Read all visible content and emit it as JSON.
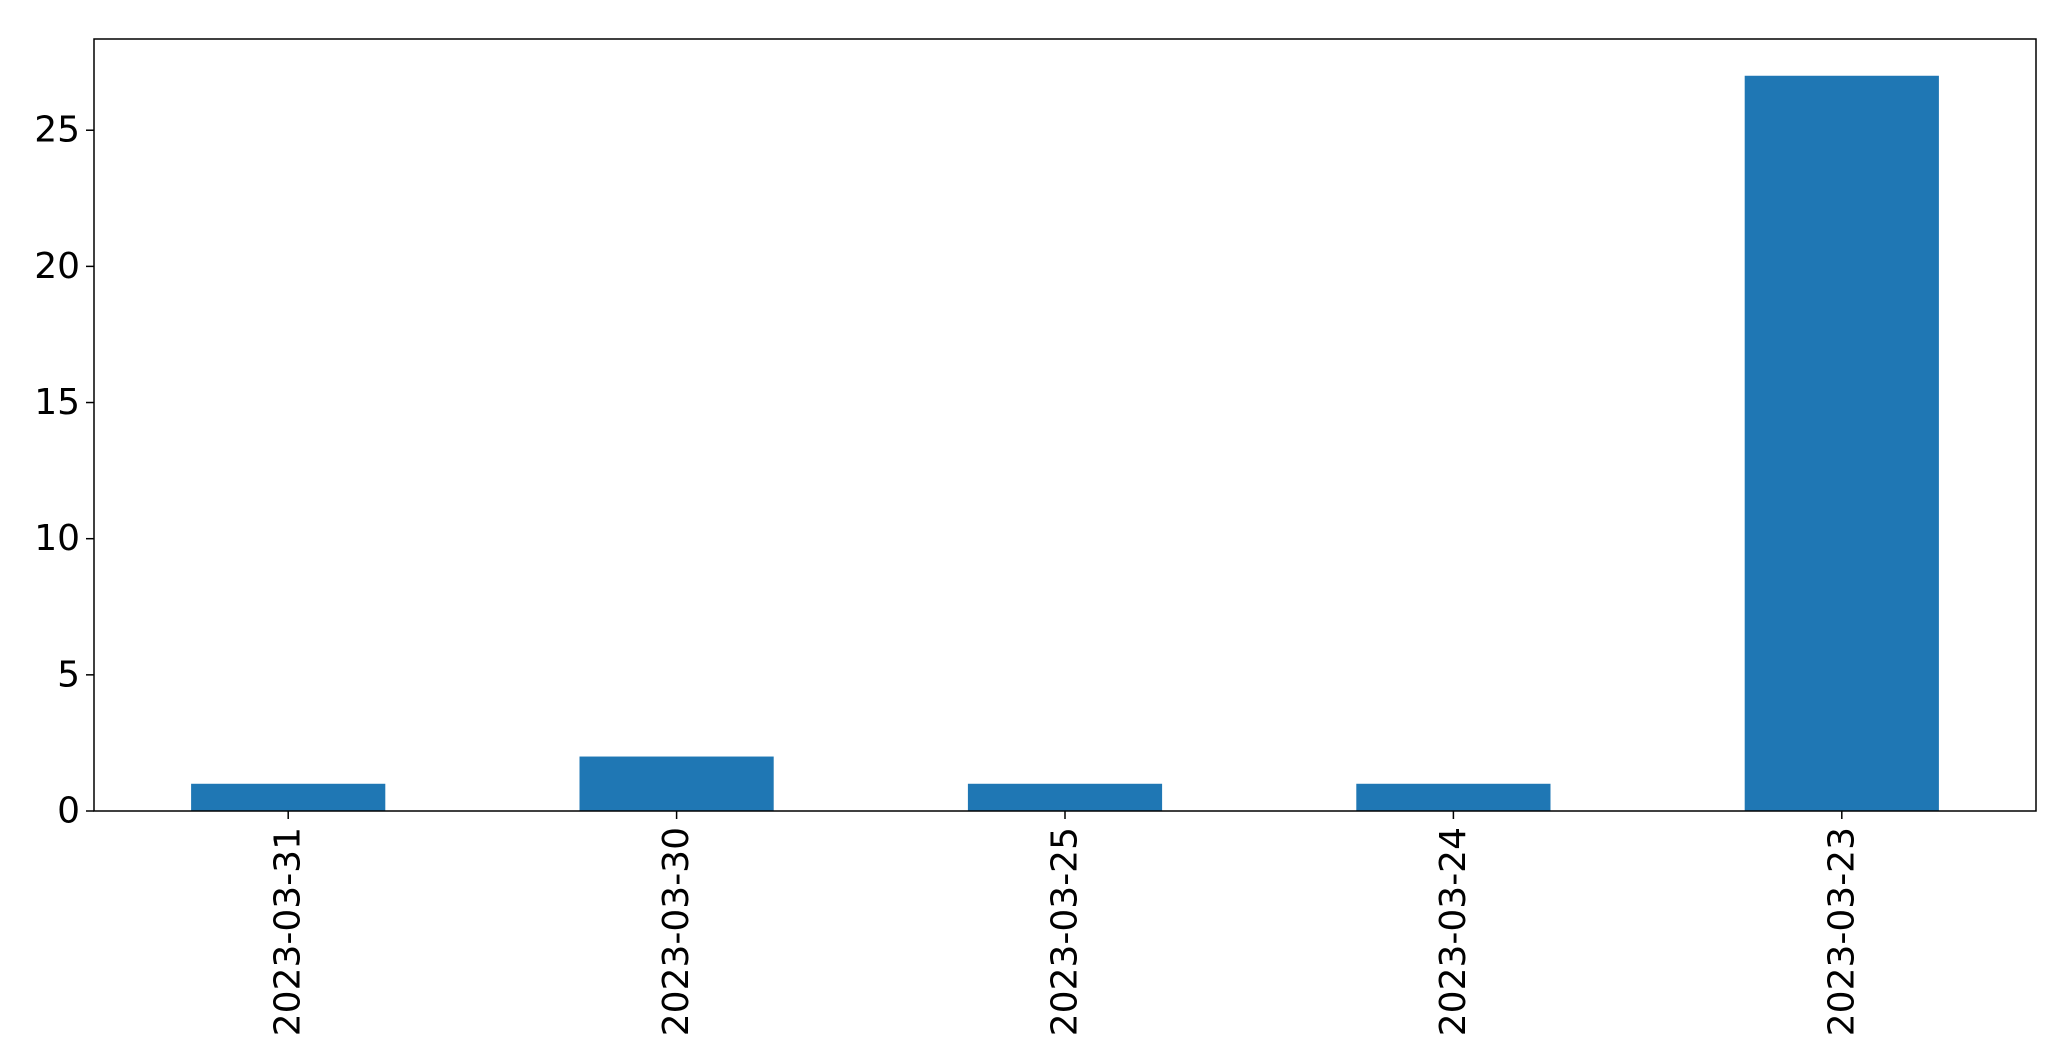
{
  "chart_data": {
    "type": "bar",
    "categories": [
      "2023-03-31",
      "2023-03-30",
      "2023-03-25",
      "2023-03-24",
      "2023-03-23"
    ],
    "values": [
      1,
      2,
      1,
      1,
      27
    ],
    "ylim": [
      0,
      28.35
    ],
    "yticks": [
      0,
      5,
      10,
      15,
      20,
      25
    ],
    "title": "",
    "xlabel": "",
    "ylabel": "",
    "grid": false,
    "bar_color": "#1f77b4",
    "x_tick_rotation": "vertical"
  }
}
